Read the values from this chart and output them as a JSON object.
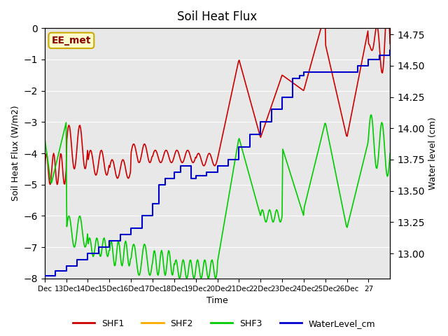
{
  "title": "Soil Heat Flux",
  "ylabel_left": "Soil Heat Flux (W/m2)",
  "ylabel_right": "Water level (cm)",
  "xlabel": "Time",
  "ylim_left": [
    -8.0,
    0.0
  ],
  "ylim_right": [
    12.8,
    14.8
  ],
  "background_color": "#e8e8e8",
  "annotation_label": "EE_met",
  "annotation_box_facecolor": "#ffffcc",
  "annotation_box_edgecolor": "#ccaa00",
  "annotation_text_color": "#8b0000",
  "shf2_color": "#ffaa00",
  "shf1_color": "#cc0000",
  "shf3_color": "#00cc00",
  "water_color": "#0000cc",
  "xtick_labels": [
    "Dec",
    "13Dec",
    "14Dec",
    "15Dec",
    "16Dec",
    "17Dec",
    "18Dec",
    "19Dec",
    "20Dec",
    "21Dec",
    "22Dec",
    "23Dec",
    "24Dec",
    "25Dec",
    "26Dec",
    "27"
  ],
  "legend_labels": [
    "SHF1",
    "SHF2",
    "SHF3",
    "WaterLevel_cm"
  ]
}
